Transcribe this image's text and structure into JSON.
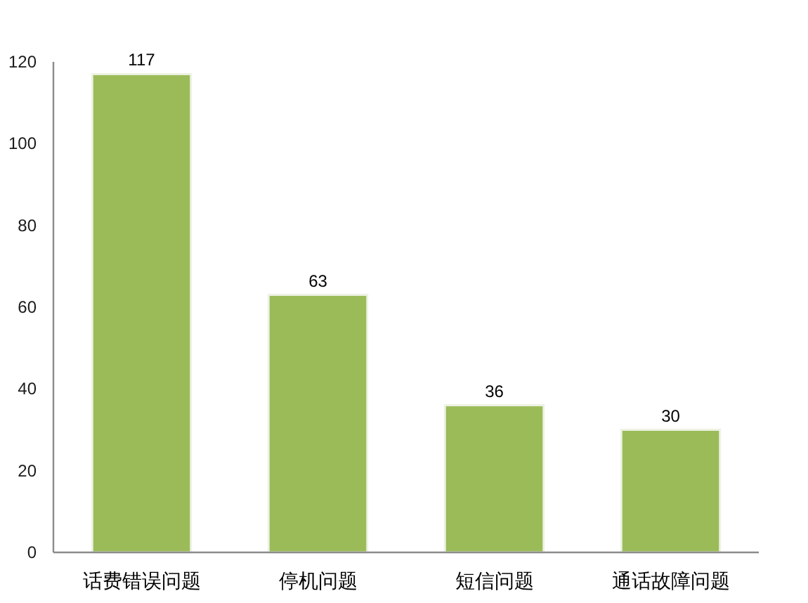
{
  "chart_data": {
    "type": "bar",
    "categories": [
      "话费错误问题",
      "停机问题",
      "短信问题",
      "通话故障问题"
    ],
    "values": [
      117,
      63,
      36,
      30
    ],
    "color": "#9bbb59",
    "ylim": [
      0,
      120
    ],
    "yticks": [
      0,
      20,
      40,
      60,
      80,
      100,
      120
    ],
    "data_labels": true
  }
}
